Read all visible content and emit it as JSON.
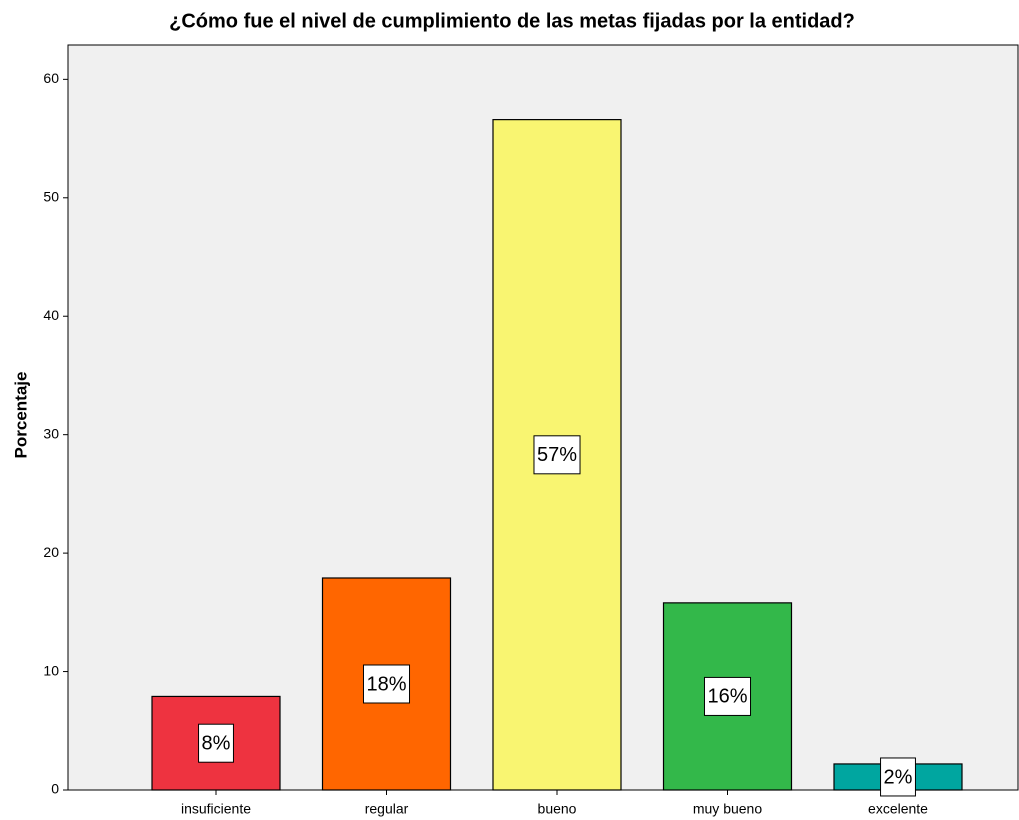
{
  "chart_data": {
    "type": "bar",
    "title": "¿Cómo fue el nivel de cumplimiento de las metas fijadas por la entidad?",
    "y_label": "Porcentaje",
    "categories": [
      "insuficiente",
      "regular",
      "bueno",
      "muy bueno",
      "excelente"
    ],
    "values": [
      7.9,
      17.9,
      56.6,
      15.8,
      2.2
    ],
    "value_labels": [
      "8%",
      "18%",
      "57%",
      "16%",
      "2%"
    ],
    "colors": [
      "#ee3340",
      "#ff6600",
      "#f9f571",
      "#33b84a",
      "#00a6a0"
    ],
    "ylim": [
      0,
      62.9
    ],
    "yticks": [
      0,
      10,
      20,
      30,
      40,
      50,
      60
    ],
    "grid": false
  }
}
